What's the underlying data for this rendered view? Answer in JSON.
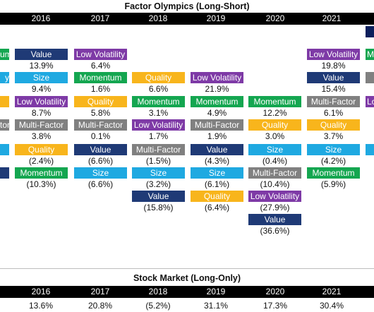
{
  "factor_title": "Factor Olympics (Long-Short)",
  "market_title": "Stock Market (Long-Only)",
  "years": [
    "2016",
    "2017",
    "2018",
    "2019",
    "2020",
    "2021"
  ],
  "colors": {
    "Value": "#1f3a76",
    "Low Volatility": "#7e3aa6",
    "Size": "#1fa9e1",
    "Momentum": "#14a650",
    "Quality": "#f8b51c",
    "Multi-Factor": "#808080",
    "Value Dark": "#0c1f5c"
  },
  "edge_stubs": {
    "left": [
      "Momentum",
      "Size",
      "Quality",
      "Multi-Factor",
      "Size",
      "Value"
    ],
    "left_text": [
      "um",
      "y",
      "",
      "tor",
      "",
      ""
    ],
    "right": [
      "Value Dark",
      "Momentum",
      "Multi-Factor",
      "Low Volatility",
      "Size"
    ],
    "right_text": [
      "",
      "M",
      "",
      "Lo",
      ""
    ]
  },
  "chart_data": {
    "type": "table",
    "title": "Factor Olympics (Long-Short)",
    "columns": [
      "2016",
      "2017",
      "2018",
      "2019",
      "2020",
      "2021"
    ],
    "rankings": [
      [
        {
          "factor": "Value",
          "value": "13.9%"
        },
        {
          "factor": "Size",
          "value": "9.4%"
        },
        {
          "factor": "Low Volatility",
          "value": "8.7%"
        },
        {
          "factor": "Multi-Factor",
          "value": "3.8%"
        },
        {
          "factor": "Quality",
          "value": "(2.4%)"
        },
        {
          "factor": "Momentum",
          "value": "(10.3%)"
        }
      ],
      [
        {
          "factor": "Low Volatility",
          "value": "6.4%"
        },
        {
          "factor": "Momentum",
          "value": "1.6%"
        },
        {
          "factor": "Quality",
          "value": "5.8%"
        },
        {
          "factor": "Multi-Factor",
          "value": "0.1%"
        },
        {
          "factor": "Value",
          "value": "(6.6%)"
        },
        {
          "factor": "Size",
          "value": "(6.6%)"
        }
      ],
      [
        {
          "factor": "Quality",
          "value": "6.6%"
        },
        {
          "factor": "Momentum",
          "value": "3.1%"
        },
        {
          "factor": "Low Volatility",
          "value": "1.7%"
        },
        {
          "factor": "Multi-Factor",
          "value": "(1.5%)"
        },
        {
          "factor": "Size",
          "value": "(3.2%)"
        },
        {
          "factor": "Value",
          "value": "(15.8%)"
        }
      ],
      [
        {
          "factor": "Low Volatility",
          "value": "21.9%"
        },
        {
          "factor": "Momentum",
          "value": "4.9%"
        },
        {
          "factor": "Multi-Factor",
          "value": "1.9%"
        },
        {
          "factor": "Value",
          "value": "(4.3%)"
        },
        {
          "factor": "Size",
          "value": "(6.1%)"
        },
        {
          "factor": "Quality",
          "value": "(6.4%)"
        }
      ],
      [
        {
          "factor": "Momentum",
          "value": "12.2%"
        },
        {
          "factor": "Quality",
          "value": "3.0%"
        },
        {
          "factor": "Size",
          "value": "(0.4%)"
        },
        {
          "factor": "Multi-Factor",
          "value": "(10.4%)"
        },
        {
          "factor": "Low Volatility",
          "value": "(27.9%)"
        },
        {
          "factor": "Value",
          "value": "(36.6%)"
        }
      ],
      [
        {
          "factor": "Low Volatility",
          "value": "19.8%"
        },
        {
          "factor": "Value",
          "value": "15.4%"
        },
        {
          "factor": "Multi-Factor",
          "value": "6.1%"
        },
        {
          "factor": "Quality",
          "value": "3.7%"
        },
        {
          "factor": "Size",
          "value": "(4.2%)"
        },
        {
          "factor": "Momentum",
          "value": "(5.9%)"
        }
      ]
    ],
    "stock_market": {
      "title": "Stock Market (Long-Only)",
      "years": [
        "2016",
        "2017",
        "2018",
        "2019",
        "2020",
        "2021"
      ],
      "values": [
        "13.6%",
        "20.8%",
        "(5.2%)",
        "31.1%",
        "17.3%",
        "30.4%"
      ],
      "numeric": [
        13.6,
        20.8,
        -5.2,
        31.1,
        17.3,
        30.4
      ]
    }
  }
}
